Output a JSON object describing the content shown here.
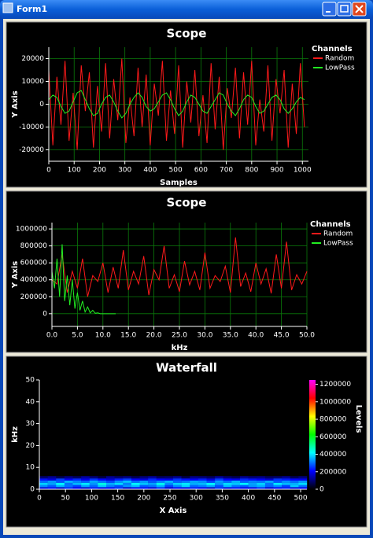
{
  "window": {
    "title": "Form1"
  },
  "chart_data": [
    {
      "type": "line",
      "title": "Scope",
      "xlabel": "Samples",
      "ylabel": "Y Axis",
      "legend_title": "Channels",
      "grid": true,
      "grid_color": "#0b7a0b",
      "x": [
        0,
        16,
        32,
        48,
        64,
        80,
        96,
        112,
        128,
        144,
        160,
        176,
        192,
        208,
        224,
        240,
        256,
        272,
        288,
        304,
        320,
        336,
        352,
        368,
        384,
        400,
        416,
        432,
        448,
        464,
        480,
        496,
        512,
        528,
        544,
        560,
        576,
        592,
        608,
        624,
        640,
        656,
        672,
        688,
        704,
        720,
        736,
        752,
        768,
        784,
        800,
        816,
        832,
        848,
        864,
        880,
        896,
        912,
        928,
        944,
        960,
        976,
        992,
        1008
      ],
      "xlim": [
        0,
        1024
      ],
      "xticks": [
        0,
        100,
        200,
        300,
        400,
        500,
        600,
        700,
        800,
        900,
        1000
      ],
      "ylim": [
        -25000,
        25000
      ],
      "yticks": [
        -20000,
        -10000,
        0,
        10000,
        20000
      ],
      "series": [
        {
          "name": "Random",
          "color": "#ff1a1a",
          "values": [
            15000,
            -18000,
            12000,
            -9000,
            19000,
            -16000,
            5000,
            -20000,
            17000,
            -3000,
            14000,
            -19000,
            8000,
            -12000,
            18000,
            -15000,
            11000,
            -7000,
            20000,
            -17000,
            3000,
            -14000,
            16000,
            -10000,
            13000,
            -18000,
            9000,
            -5000,
            19000,
            -16000,
            6000,
            -13000,
            17000,
            -19000,
            10000,
            -8000,
            15000,
            -14000,
            4000,
            -17000,
            18000,
            -11000,
            12000,
            -20000,
            7000,
            -6000,
            16000,
            -15000,
            14000,
            -9000,
            19000,
            -18000,
            2000,
            -12000,
            17000,
            -16000,
            11000,
            -4000,
            15000,
            -19000,
            9000,
            -13000,
            18000,
            -10000
          ]
        },
        {
          "name": "LowPass",
          "color": "#22ee22",
          "values": [
            2000,
            4000,
            3000,
            -1000,
            -4000,
            -3000,
            1000,
            5000,
            6000,
            2000,
            -2000,
            -5000,
            -4000,
            0,
            3000,
            4000,
            1000,
            -3000,
            -6000,
            -4000,
            0,
            3000,
            5000,
            3000,
            -1000,
            -3000,
            -2000,
            1000,
            4000,
            5000,
            2000,
            -2000,
            -5000,
            -3000,
            1000,
            4000,
            3000,
            0,
            -3000,
            -4000,
            -1000,
            2000,
            5000,
            4000,
            0,
            -3000,
            -5000,
            -2000,
            2000,
            4000,
            3000,
            -1000,
            -4000,
            -3000,
            0,
            3000,
            4000,
            2000,
            -2000,
            -4000,
            -2000,
            1000,
            3000,
            2000
          ]
        }
      ]
    },
    {
      "type": "line",
      "title": "Scope",
      "xlabel": "kHz",
      "ylabel": "Y Axis",
      "legend_title": "Channels",
      "grid": true,
      "grid_color": "#0b7a0b",
      "xlim": [
        0,
        50
      ],
      "xticks": [
        {
          "value": 0,
          "label": "0.0"
        },
        {
          "value": 5,
          "label": "5.0"
        },
        {
          "value": 10,
          "label": "10.0"
        },
        {
          "value": 15,
          "label": "15.0"
        },
        {
          "value": 20,
          "label": "20.0"
        },
        {
          "value": 25,
          "label": "25.0"
        },
        {
          "value": 30,
          "label": "30.0"
        },
        {
          "value": 35,
          "label": "35.0"
        },
        {
          "value": 40,
          "label": "40.0"
        },
        {
          "value": 45,
          "label": "45.0"
        },
        {
          "value": 50,
          "label": "50.0"
        }
      ],
      "ylim": [
        -150000,
        1075000
      ],
      "yticks": [
        0,
        200000,
        400000,
        600000,
        800000,
        1000000
      ],
      "series": [
        {
          "name": "Random",
          "color": "#ff1a1a",
          "x": [
            0,
            1,
            2,
            3,
            4,
            5,
            6,
            7,
            8,
            9,
            10,
            11,
            12,
            13,
            14,
            15,
            16,
            17,
            18,
            19,
            20,
            21,
            22,
            23,
            24,
            25,
            26,
            27,
            28,
            29,
            30,
            31,
            32,
            33,
            34,
            35,
            36,
            37,
            38,
            39,
            40,
            41,
            42,
            43,
            44,
            45,
            46,
            47,
            48,
            49,
            50
          ],
          "values": [
            400000,
            350000,
            700000,
            250000,
            500000,
            300000,
            650000,
            200000,
            450000,
            380000,
            600000,
            250000,
            550000,
            300000,
            750000,
            280000,
            500000,
            350000,
            680000,
            220000,
            520000,
            400000,
            800000,
            300000,
            460000,
            260000,
            620000,
            340000,
            500000,
            280000,
            720000,
            300000,
            450000,
            380000,
            560000,
            250000,
            900000,
            320000,
            480000,
            260000,
            600000,
            350000,
            530000,
            240000,
            700000,
            300000,
            850000,
            280000,
            460000,
            350000,
            500000
          ]
        },
        {
          "name": "LowPass",
          "color": "#22ee22",
          "x": [
            0,
            0.5,
            1,
            1.5,
            2,
            2.5,
            3,
            3.5,
            4,
            4.5,
            5,
            5.5,
            6,
            6.5,
            7,
            7.5,
            8,
            8.5,
            9,
            9.5,
            10,
            10.5,
            11,
            11.5,
            12,
            12.5
          ],
          "values": [
            500000,
            300000,
            650000,
            200000,
            820000,
            150000,
            450000,
            100000,
            400000,
            60000,
            250000,
            40000,
            150000,
            20000,
            80000,
            10000,
            40000,
            5000,
            10000,
            0,
            0,
            0,
            0,
            0,
            0,
            0
          ]
        }
      ]
    },
    {
      "type": "heatmap",
      "title": "Waterfall",
      "xlabel": "X Axis",
      "ylabel": "kHz",
      "colorbar_label": "Levels",
      "grid": false,
      "xlim": [
        0,
        512
      ],
      "xticks": [
        0,
        50,
        100,
        150,
        200,
        250,
        300,
        350,
        400,
        450,
        500
      ],
      "ylim": [
        0,
        50
      ],
      "yticks": [
        0,
        10,
        20,
        30,
        40,
        50
      ],
      "x": [
        0,
        16,
        32,
        48,
        64,
        80,
        96,
        112,
        128,
        144,
        160,
        176,
        192,
        208,
        224,
        240,
        256,
        272,
        288,
        304,
        320,
        336,
        352,
        368,
        384,
        400,
        416,
        432,
        448,
        464,
        480,
        496
      ],
      "y": [
        0,
        1,
        2,
        3,
        4,
        5
      ],
      "clim": [
        0,
        1250000
      ],
      "cticks": [
        0,
        200000,
        400000,
        600000,
        800000,
        1000000,
        1200000
      ],
      "colormap": [
        "#000000",
        "#0000ff",
        "#00ffff",
        "#00ff00",
        "#ffff00",
        "#ff0000",
        "#ff00ff"
      ],
      "values": [
        [
          180000,
          220000,
          160000,
          240000,
          200000,
          170000,
          230000,
          190000,
          210000,
          250000,
          160000,
          200000,
          220000,
          180000,
          240000,
          170000,
          210000,
          190000,
          230000,
          200000,
          160000,
          250000,
          180000,
          220000,
          200000,
          190000,
          240000,
          170000,
          210000,
          230000,
          180000,
          200000
        ],
        [
          320000,
          280000,
          350000,
          300000,
          260000,
          340000,
          290000,
          370000,
          310000,
          270000,
          330000,
          360000,
          280000,
          300000,
          350000,
          260000,
          320000,
          380000,
          290000,
          310000,
          340000,
          270000,
          360000,
          300000,
          280000,
          330000,
          350000,
          290000,
          320000,
          260000,
          370000,
          300000
        ],
        [
          380000,
          340000,
          420000,
          300000,
          360000,
          400000,
          330000,
          440000,
          350000,
          390000,
          310000,
          410000,
          370000,
          340000,
          430000,
          320000,
          380000,
          400000,
          350000,
          360000,
          420000,
          330000,
          390000,
          370000,
          410000,
          340000,
          380000,
          300000,
          400000,
          360000,
          350000,
          390000
        ],
        [
          300000,
          340000,
          280000,
          360000,
          320000,
          290000,
          350000,
          310000,
          270000,
          330000,
          370000,
          300000,
          340000,
          280000,
          320000,
          360000,
          290000,
          310000,
          350000,
          330000,
          270000,
          340000,
          300000,
          360000,
          290000,
          320000,
          310000,
          350000,
          280000,
          330000,
          300000,
          340000
        ],
        [
          220000,
          180000,
          260000,
          200000,
          240000,
          190000,
          250000,
          210000,
          170000,
          230000,
          260000,
          200000,
          180000,
          240000,
          210000,
          190000,
          250000,
          220000,
          200000,
          230000,
          180000,
          260000,
          210000,
          190000,
          240000,
          220000,
          200000,
          170000,
          250000,
          230000,
          210000,
          190000
        ],
        [
          90000,
          120000,
          70000,
          110000,
          80000,
          130000,
          100000,
          60000,
          120000,
          90000,
          110000,
          70000,
          100000,
          130000,
          80000,
          90000,
          120000,
          60000,
          110000,
          100000,
          80000,
          130000,
          90000,
          70000,
          120000,
          100000,
          110000,
          80000,
          90000,
          120000,
          70000,
          100000
        ]
      ]
    }
  ]
}
